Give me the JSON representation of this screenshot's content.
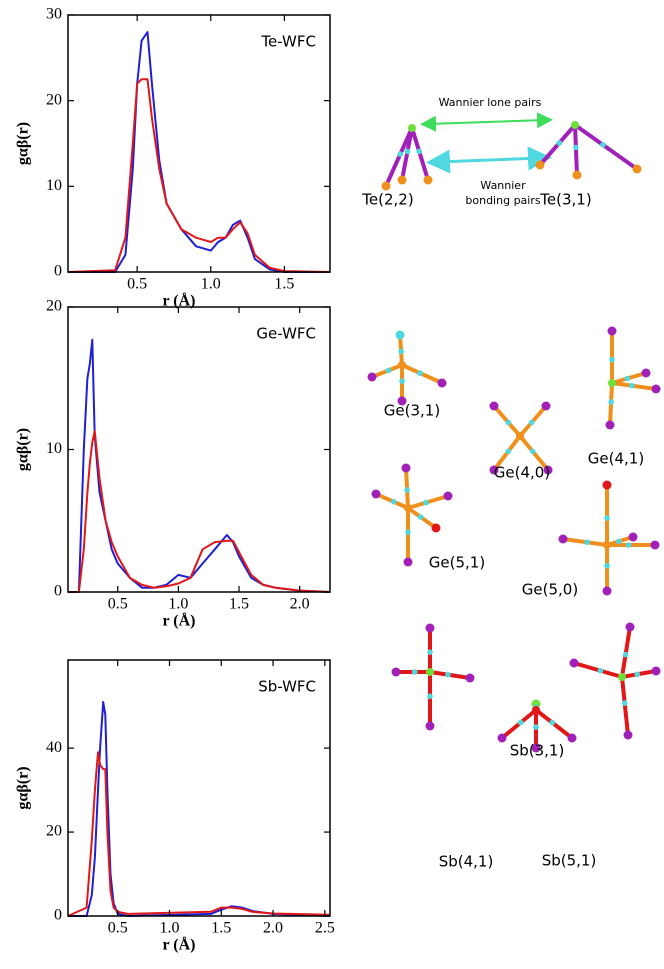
{
  "chart_data": [
    {
      "type": "line",
      "title": "Te-WFC",
      "x_label": "r (Å)",
      "y_label": "gαβ(r)",
      "x": [
        0.03,
        0.35,
        0.42,
        0.47,
        0.5,
        0.53,
        0.57,
        0.6,
        0.65,
        0.7,
        0.8,
        0.9,
        1.0,
        1.05,
        1.1,
        1.15,
        1.2,
        1.25,
        1.3,
        1.4,
        1.5,
        1.81
      ],
      "series": [
        {
          "color": "#1f1fd6",
          "values": [
            0,
            0,
            2,
            12,
            22,
            27,
            28,
            22,
            13,
            8,
            5,
            3,
            2.5,
            3.5,
            4,
            5.5,
            6,
            4,
            1.5,
            0.3,
            0,
            0
          ]
        },
        {
          "color": "#e01818",
          "values": [
            0,
            0.2,
            4,
            15,
            22,
            22.5,
            22.5,
            18,
            12,
            8,
            5,
            4,
            3.5,
            4,
            4,
            5,
            5.8,
            4.5,
            2,
            0.5,
            0.1,
            0
          ]
        }
      ],
      "xlim": [
        0.03,
        1.81
      ],
      "xticks": [
        0.5,
        {
          "value": 1,
          "label": "1.0"
        },
        1.5
      ],
      "ylim": [
        0,
        30
      ],
      "yticks": [
        0,
        10,
        20,
        30
      ]
    },
    {
      "type": "line",
      "title": "Ge-WFC",
      "x_label": "r (Å)",
      "y_label": "gαβ(r)",
      "x": [
        0.09,
        0.18,
        0.22,
        0.25,
        0.27,
        0.29,
        0.31,
        0.35,
        0.4,
        0.45,
        0.5,
        0.6,
        0.7,
        0.8,
        0.9,
        1.0,
        1.1,
        1.2,
        1.3,
        1.4,
        1.45,
        1.5,
        1.6,
        1.7,
        1.8,
        2.0,
        2.25
      ],
      "series": [
        {
          "color": "#1f1fd6",
          "values": [
            0,
            0,
            10,
            15,
            16,
            17.7,
            11,
            7,
            5,
            3,
            2,
            1,
            0.3,
            0.3,
            0.5,
            1.2,
            1,
            2,
            3,
            4,
            3.5,
            2.5,
            1,
            0.5,
            0.3,
            0.1,
            0
          ]
        },
        {
          "color": "#e01818",
          "values": [
            0,
            0,
            3,
            7,
            9,
            10.5,
            11.3,
            8,
            5,
            3.5,
            2.5,
            1,
            0.5,
            0.3,
            0.4,
            0.6,
            1,
            3,
            3.5,
            3.6,
            3.6,
            2.8,
            1.2,
            0.5,
            0.3,
            0.1,
            0
          ]
        }
      ],
      "xlim": [
        0.09,
        2.25
      ],
      "xticks": [
        0.5,
        {
          "value": 1,
          "label": "1.0"
        },
        1.5,
        {
          "value": 2,
          "label": "2.0"
        }
      ],
      "ylim": [
        0,
        20
      ],
      "yticks": [
        0,
        10,
        20
      ]
    },
    {
      "type": "line",
      "title": "Sb-WFC",
      "x_label": "r (Å)",
      "y_label": "gαβ(r)",
      "x": [
        0.02,
        0.2,
        0.25,
        0.28,
        0.31,
        0.33,
        0.36,
        0.38,
        0.4,
        0.43,
        0.46,
        0.5,
        0.6,
        1.4,
        1.5,
        1.6,
        1.7,
        1.8,
        2.0,
        2.55
      ],
      "series": [
        {
          "color": "#1f1fd6",
          "values": [
            0,
            0,
            5,
            14,
            30,
            40,
            51,
            48,
            30,
            10,
            3,
            0.5,
            0,
            0.5,
            1.5,
            2.3,
            2,
            1.2,
            0.5,
            0
          ]
        },
        {
          "color": "#e01818",
          "values": [
            0,
            2,
            18,
            30,
            39,
            36,
            35,
            35,
            20,
            6,
            2,
            1,
            0.5,
            1,
            2,
            2,
            1.7,
            1,
            0.6,
            0.3
          ]
        }
      ],
      "xlim": [
        0.02,
        2.55
      ],
      "xticks": [
        0.5,
        {
          "value": 1,
          "label": "1.0"
        },
        1.5,
        {
          "value": 2,
          "label": "2.0"
        },
        2.5
      ],
      "ylim": [
        0,
        61
      ],
      "yticks": [
        0,
        20,
        40
      ]
    }
  ],
  "structures": [
    {
      "labels": [
        "Wannier lone pairs",
        "Wannier",
        "bonding pairs",
        "Te(2,2)",
        "Te(3,1)"
      ]
    },
    {
      "labels": [
        "Ge(3,1)",
        "Ge(4,0)",
        "Ge(4,1)",
        "Ge(5,1)",
        "Ge(5,0)"
      ]
    },
    {
      "labels": [
        "Sb(3,1)",
        "Sb(4,1)",
        "Sb(5,1)"
      ]
    }
  ]
}
